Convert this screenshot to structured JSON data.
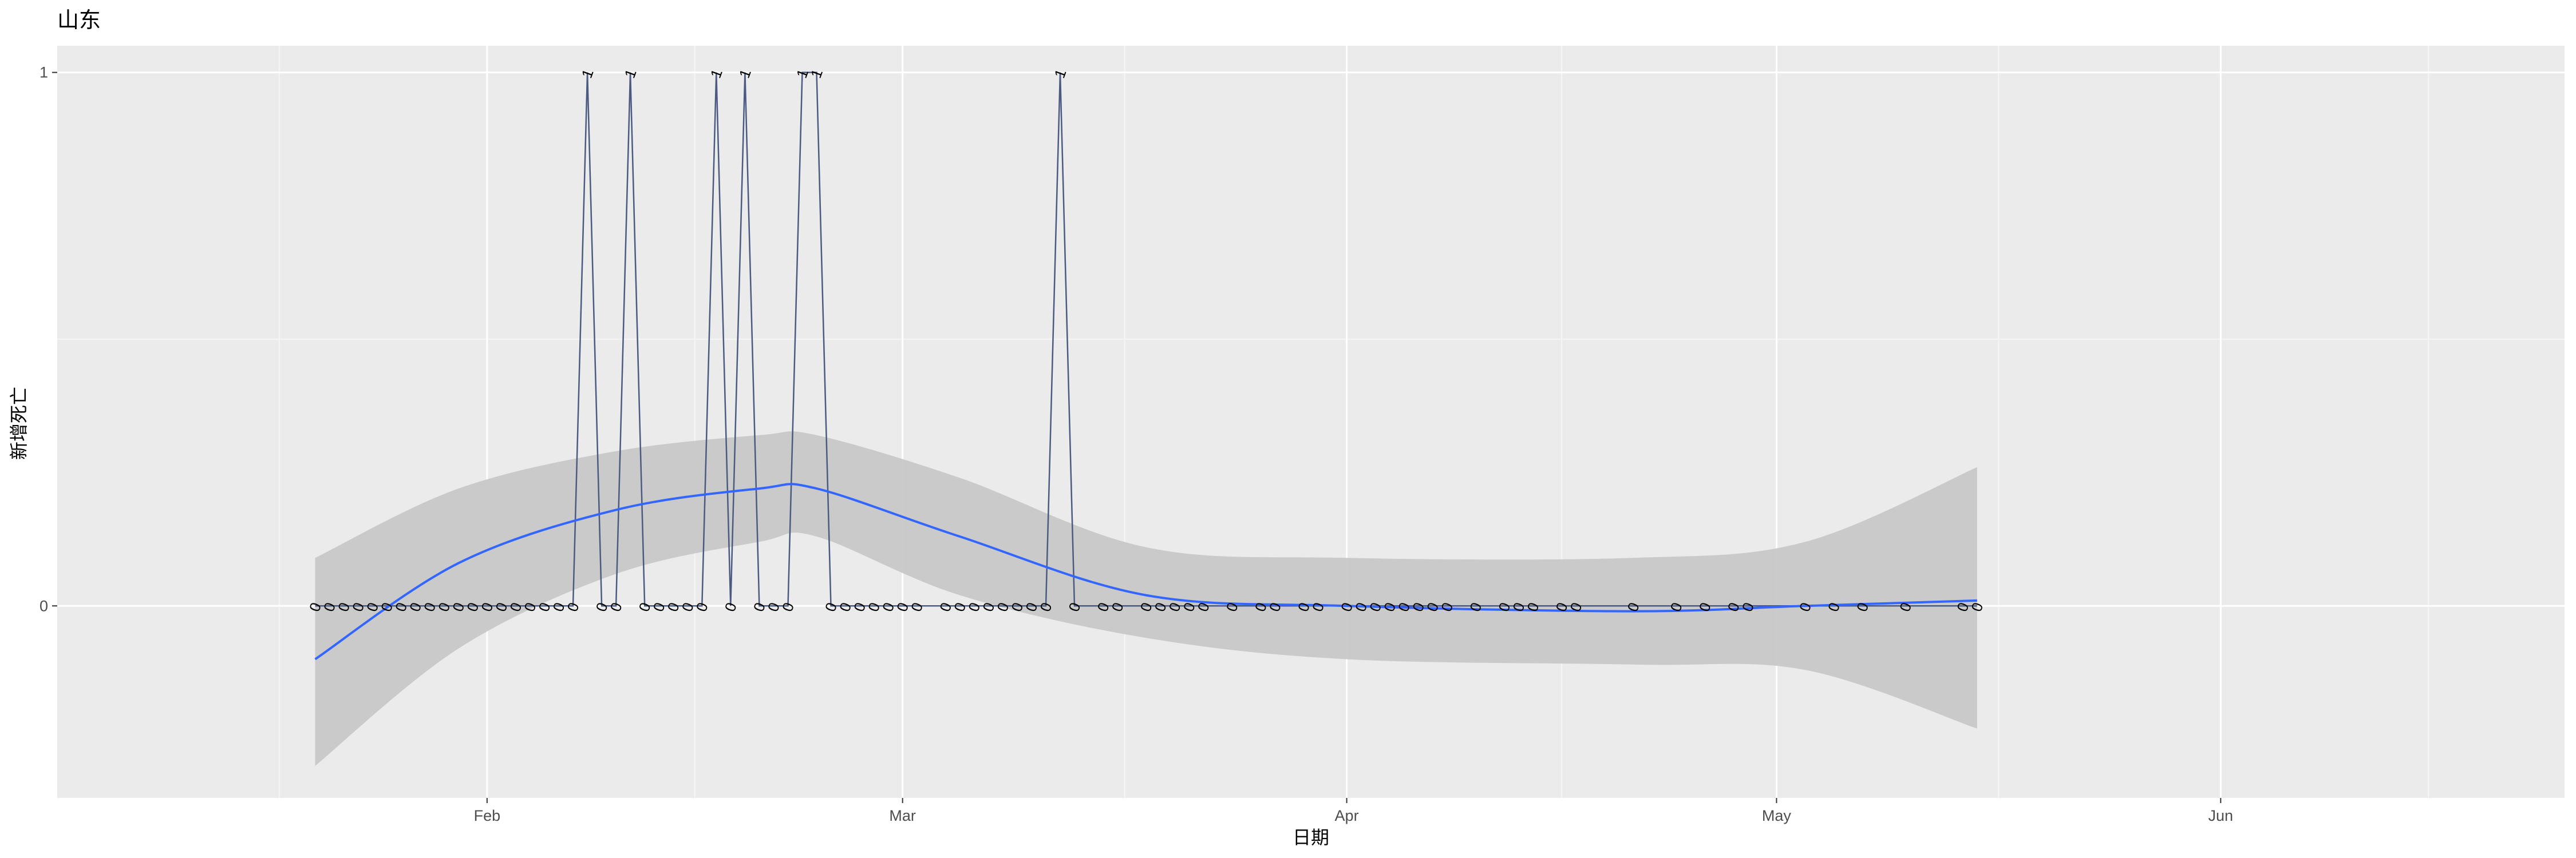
{
  "chart_data": {
    "type": "line",
    "title": "山东",
    "xlabel": "日期",
    "ylabel": "新增死亡",
    "x_ticks": [
      "Feb",
      "Mar",
      "Apr",
      "May",
      "Jun"
    ],
    "y_ticks": [
      "0",
      "1"
    ],
    "xlim": [
      "2020-01-02",
      "2020-06-25"
    ],
    "ylim": [
      -0.36,
      1.05
    ],
    "grid": true,
    "series": [
      {
        "x": [
          "2020-01-20",
          "2020-01-21",
          "2020-01-22",
          "2020-01-23",
          "2020-01-24",
          "2020-01-25",
          "2020-01-26",
          "2020-01-27",
          "2020-01-28",
          "2020-01-29",
          "2020-01-30",
          "2020-01-31",
          "2020-02-01",
          "2020-02-02",
          "2020-02-03",
          "2020-02-04",
          "2020-02-05",
          "2020-02-06",
          "2020-02-07",
          "2020-02-08",
          "2020-02-09",
          "2020-02-10",
          "2020-02-11",
          "2020-02-12",
          "2020-02-13",
          "2020-02-14",
          "2020-02-15",
          "2020-02-16",
          "2020-02-17",
          "2020-02-18",
          "2020-02-19",
          "2020-02-20",
          "2020-02-21",
          "2020-02-22",
          "2020-02-23",
          "2020-02-24",
          "2020-02-25",
          "2020-02-26",
          "2020-02-27",
          "2020-02-28",
          "2020-02-29",
          "2020-03-01",
          "2020-03-02",
          "2020-03-04",
          "2020-03-05",
          "2020-03-06",
          "2020-03-07",
          "2020-03-08",
          "2020-03-09",
          "2020-03-10",
          "2020-03-11",
          "2020-03-12",
          "2020-03-13",
          "2020-03-15",
          "2020-03-16",
          "2020-03-18",
          "2020-03-19",
          "2020-03-20",
          "2020-03-21",
          "2020-03-22",
          "2020-03-24",
          "2020-03-26",
          "2020-03-27",
          "2020-03-29",
          "2020-03-30",
          "2020-04-01",
          "2020-04-02",
          "2020-04-03",
          "2020-04-04",
          "2020-04-05",
          "2020-04-06",
          "2020-04-07",
          "2020-04-08",
          "2020-04-10",
          "2020-04-12",
          "2020-04-13",
          "2020-04-14",
          "2020-04-16",
          "2020-04-17",
          "2020-04-21",
          "2020-04-24",
          "2020-04-26",
          "2020-04-28",
          "2020-04-29",
          "2020-05-03",
          "2020-05-05",
          "2020-05-07",
          "2020-05-10",
          "2020-05-14",
          "2020-05-15"
        ],
        "y": [
          0,
          0,
          0,
          0,
          0,
          0,
          0,
          0,
          0,
          0,
          0,
          0,
          0,
          0,
          0,
          0,
          0,
          0,
          0,
          1,
          0,
          0,
          1,
          0,
          0,
          0,
          0,
          0,
          1,
          0,
          1,
          0,
          0,
          0,
          1,
          1,
          0,
          0,
          0,
          0,
          0,
          0,
          0,
          0,
          0,
          0,
          0,
          0,
          0,
          0,
          0,
          1,
          0,
          0,
          0,
          0,
          0,
          0,
          0,
          0,
          0,
          0,
          0,
          0,
          0,
          0,
          0,
          0,
          0,
          0,
          0,
          0,
          0,
          0,
          0,
          0,
          0,
          0,
          0,
          0,
          0,
          0,
          0,
          0,
          0,
          0,
          0,
          0,
          0,
          0
        ],
        "color": "#4a5a80"
      }
    ],
    "smooth": {
      "method": "loess",
      "color": "#3366ff",
      "band_color": "#c8c8c8",
      "x": [
        "2020-01-20",
        "2020-01-30",
        "2020-02-10",
        "2020-02-20",
        "2020-02-24",
        "2020-03-05",
        "2020-03-18",
        "2020-04-01",
        "2020-04-21",
        "2020-05-03",
        "2020-05-15"
      ],
      "y": [
        -0.1,
        0.08,
        0.18,
        0.22,
        0.22,
        0.13,
        0.02,
        0.0,
        -0.01,
        0.0,
        0.01
      ],
      "lower": [
        -0.3,
        -0.08,
        0.06,
        0.12,
        0.13,
        0.02,
        -0.06,
        -0.1,
        -0.11,
        -0.12,
        -0.23
      ],
      "upper": [
        0.09,
        0.22,
        0.29,
        0.32,
        0.32,
        0.24,
        0.11,
        0.09,
        0.09,
        0.12,
        0.26
      ]
    },
    "colors": {
      "panel": "#ebebeb",
      "grid_major": "#ffffff",
      "grid_minor": "#f5f5f5"
    }
  }
}
